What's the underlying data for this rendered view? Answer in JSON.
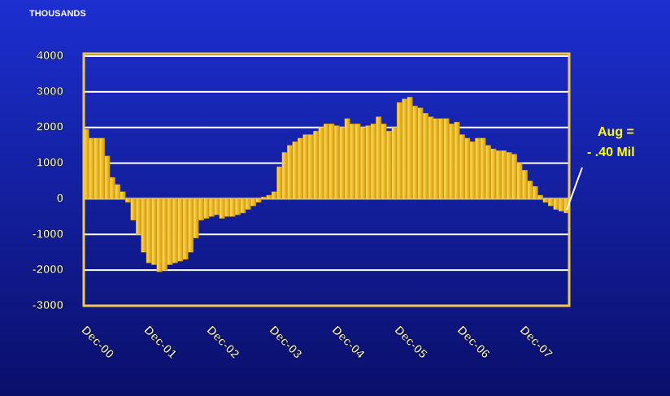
{
  "chart_data": {
    "type": "bar",
    "axis_unit_label": "THOUSANDS",
    "categories": [
      "Dec-00",
      null,
      null,
      null,
      null,
      null,
      null,
      null,
      null,
      null,
      null,
      null,
      "Dec-01",
      null,
      null,
      null,
      null,
      null,
      null,
      null,
      null,
      null,
      null,
      null,
      "Dec-02",
      null,
      null,
      null,
      null,
      null,
      null,
      null,
      null,
      null,
      null,
      null,
      "Dec-03",
      null,
      null,
      null,
      null,
      null,
      null,
      null,
      null,
      null,
      null,
      null,
      "Dec-04",
      null,
      null,
      null,
      null,
      null,
      null,
      null,
      null,
      null,
      null,
      null,
      "Dec-05",
      null,
      null,
      null,
      null,
      null,
      null,
      null,
      null,
      null,
      null,
      null,
      "Dec-06",
      null,
      null,
      null,
      null,
      null,
      null,
      null,
      null,
      null,
      null,
      null,
      "Dec-07",
      null,
      null,
      null,
      null,
      null,
      null,
      null,
      null
    ],
    "values": [
      1950,
      1700,
      1700,
      1700,
      1200,
      600,
      400,
      200,
      -100,
      -600,
      -1000,
      -1500,
      -1800,
      -1850,
      -2050,
      -2000,
      -1850,
      -1800,
      -1750,
      -1700,
      -1500,
      -1100,
      -600,
      -550,
      -500,
      -450,
      -550,
      -500,
      -500,
      -450,
      -400,
      -300,
      -200,
      -100,
      50,
      100,
      200,
      900,
      1300,
      1500,
      1600,
      1700,
      1800,
      1800,
      1900,
      2000,
      2100,
      2100,
      2050,
      2000,
      2250,
      2100,
      2100,
      2000,
      2050,
      2100,
      2300,
      2100,
      1900,
      2000,
      2700,
      2800,
      2850,
      2600,
      2550,
      2400,
      2300,
      2250,
      2250,
      2250,
      2100,
      2150,
      1800,
      1700,
      1600,
      1700,
      1700,
      1500,
      1400,
      1350,
      1350,
      1300,
      1250,
      1000,
      800,
      500,
      350,
      100,
      -100,
      -200,
      -300,
      -350,
      -400
    ],
    "color": "#f0b400",
    "ylim": [
      -3000,
      4000
    ],
    "yticks": [
      -3000,
      -2000,
      -1000,
      0,
      1000,
      2000,
      3000,
      4000
    ],
    "grid": true,
    "annotation": [
      "Aug =",
      "- .40 Mil"
    ]
  }
}
